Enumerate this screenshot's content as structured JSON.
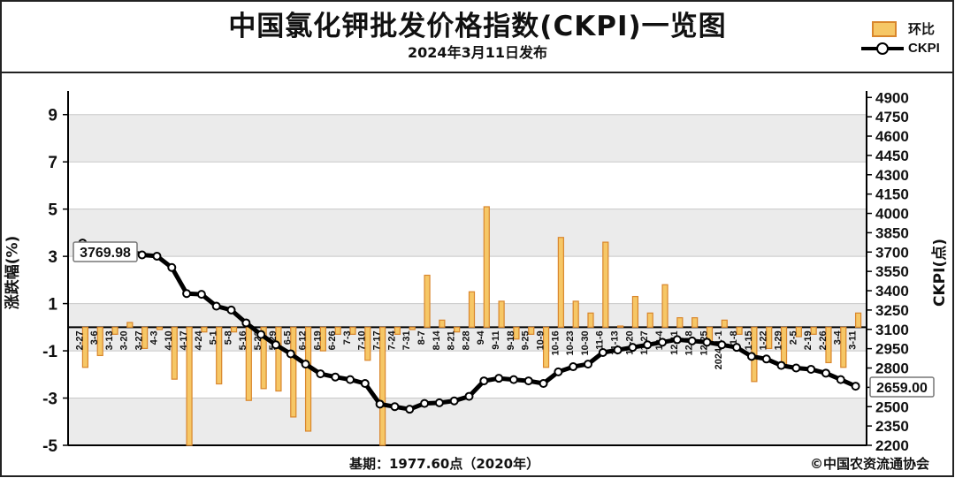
{
  "header": {
    "title": "中国氯化钾批发价格指数(CKPI)一览图",
    "subtitle": "2024年3月11日发布"
  },
  "legend": {
    "bar_label": "环比",
    "line_label": "CKPI"
  },
  "footer": {
    "base_note": "基期：1977.60点（2020年）",
    "copyright": "©中国农资流通协会"
  },
  "colors": {
    "bar_fill": "#f6c766",
    "bar_edge": "#d9862c",
    "line": "#000000",
    "grid_band": "#ebebeb"
  },
  "chart_data": {
    "type": "bar+line",
    "title": "中国氯化钾批发价格指数(CKPI)一览图",
    "subtitle": "2024年3月11日发布",
    "ylabel_left": "涨跌幅(%)",
    "ylabel_right": "CKPI(点)",
    "ylim_left": [
      -5,
      10
    ],
    "yticks_left": [
      "9",
      "7",
      "5",
      "3",
      "1",
      "-1",
      "-3",
      "-5"
    ],
    "ylim_right": [
      2200,
      4950
    ],
    "yticks_right": [
      "4900",
      "4750",
      "4600",
      "4450",
      "4300",
      "4150",
      "4000",
      "3850",
      "3700",
      "3550",
      "3400",
      "3250",
      "3100",
      "2950",
      "2800",
      "2650",
      "2500",
      "2350",
      "2200"
    ],
    "grid": true,
    "legend_position": "top-right",
    "categories": [
      "2-27",
      "3-6",
      "3-13",
      "3-20",
      "3-27",
      "4-3",
      "4-10",
      "4-17",
      "4-24",
      "5-1",
      "5-8",
      "5-16",
      "5-22",
      "5-29",
      "6-5",
      "6-12",
      "6-19",
      "6-26",
      "7-3",
      "7-10",
      "7-17",
      "7-24",
      "7-31",
      "8-7",
      "8-14",
      "8-21",
      "8-28",
      "9-4",
      "9-11",
      "9-18",
      "9-25",
      "10-9",
      "10-16",
      "10-23",
      "10-30",
      "11-6",
      "11-13",
      "11-20",
      "11-27",
      "12-4",
      "12-11",
      "12-18",
      "12-25",
      "2024-1-1",
      "1-8",
      "1-15",
      "1-22",
      "1-29",
      "2-5",
      "2-19",
      "2-26",
      "3-4",
      "3-11"
    ],
    "series": [
      {
        "name": "环比",
        "type": "bar",
        "values": [
          -1.7,
          -1.2,
          -0.3,
          0.2,
          -0.9,
          -0.1,
          -2.2,
          -5.0,
          -0.2,
          -2.4,
          -0.2,
          -3.1,
          -2.6,
          -2.7,
          -3.8,
          -4.4,
          -1.0,
          -0.3,
          -0.3,
          -1.4,
          -5.0,
          -0.3,
          -0.1,
          2.2,
          0.3,
          -0.2,
          1.5,
          5.1,
          1.1,
          -0.5,
          -0.3,
          -1.7,
          3.8,
          1.1,
          0.6,
          3.6,
          0.05,
          1.3,
          0.6,
          1.8,
          0.4,
          0.4,
          -0.6,
          0.3,
          -0.3,
          -2.3,
          -0.9,
          -1.6,
          -0.4,
          -0.3,
          -1.5,
          -1.7,
          0.6
        ]
      },
      {
        "name": "CKPI",
        "type": "line",
        "values": [
          3770,
          3725,
          3712,
          3718,
          3678,
          3668,
          3580,
          3378,
          3372,
          3280,
          3250,
          3150,
          3060,
          2980,
          2910,
          2830,
          2755,
          2730,
          2710,
          2680,
          2520,
          2500,
          2480,
          2525,
          2530,
          2545,
          2580,
          2700,
          2720,
          2710,
          2700,
          2680,
          2770,
          2810,
          2830,
          2920,
          2940,
          2960,
          2980,
          3000,
          3020,
          3010,
          3000,
          2980,
          2960,
          2890,
          2870,
          2820,
          2800,
          2790,
          2760,
          2710,
          2659
        ]
      }
    ],
    "annotations": [
      "3769.98",
      "2659.00"
    ]
  }
}
